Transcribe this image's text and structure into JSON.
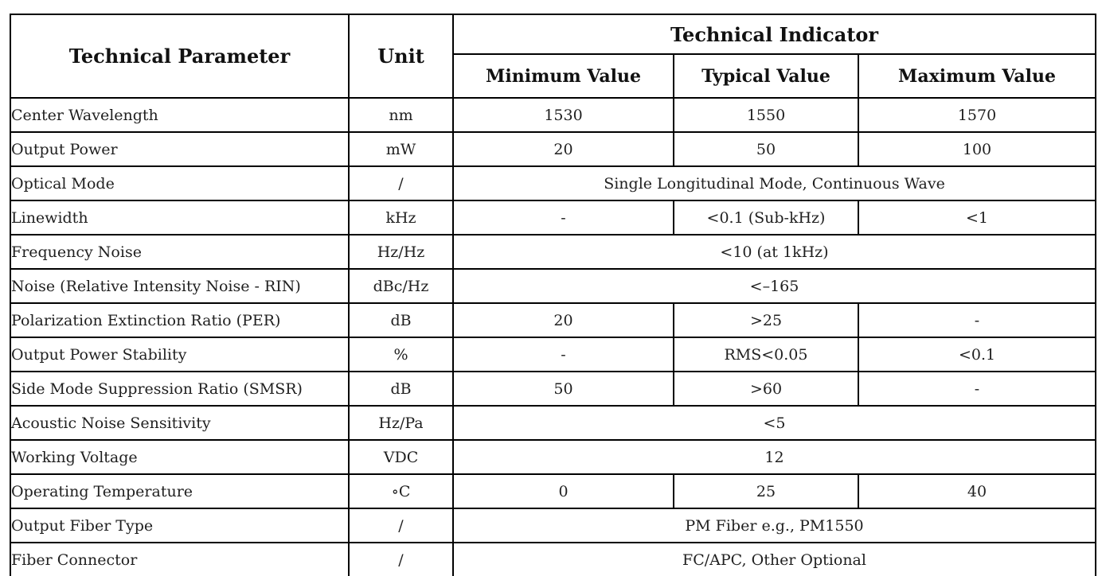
{
  "table": {
    "header": {
      "parameter": "Technical Parameter",
      "unit": "Unit",
      "indicator": "Technical Indicator",
      "minimum": "Minimum Value",
      "typical": "Typical Value",
      "maximum": "Maximum Value"
    },
    "rows": [
      {
        "parameter": "Center Wavelength",
        "unit": "nm",
        "min": "1530",
        "typical": "1550",
        "max": "1570"
      },
      {
        "parameter": "Output Power",
        "unit": "mW",
        "min": "20",
        "typical": "50",
        "max": "100"
      },
      {
        "parameter": "Optical Mode",
        "unit": "/",
        "span": "Single Longitudinal Mode, Continuous Wave"
      },
      {
        "parameter": "Linewidth",
        "unit": "kHz",
        "min": "-",
        "typical": "<0.1 (Sub-kHz)",
        "max": "<1"
      },
      {
        "parameter": "Frequency Noise",
        "unit": "Hz/Hz",
        "span": "<10 (at 1kHz)"
      },
      {
        "parameter": "Noise (Relative Intensity Noise - RIN)",
        "unit": "dBc/Hz",
        "span": "<–165"
      },
      {
        "parameter": "Polarization Extinction Ratio (PER)",
        "unit": "dB",
        "min": "20",
        "typical": ">25",
        "max": "-"
      },
      {
        "parameter": "Output Power Stability",
        "unit": "%",
        "min": "-",
        "typical": "RMS<0.05",
        "max": "<0.1"
      },
      {
        "parameter": "Side Mode Suppression Ratio (SMSR)",
        "unit": "dB",
        "min": "50",
        "typical": ">60",
        "max": "-"
      },
      {
        "parameter": "Acoustic Noise Sensitivity",
        "unit": "Hz/Pa",
        "span": "<5"
      },
      {
        "parameter": "Working Voltage",
        "unit": "VDC",
        "span": "12"
      },
      {
        "parameter": "Operating Temperature",
        "unit": "∘C",
        "min": "0",
        "typical": "25",
        "max": "40"
      },
      {
        "parameter": "Output Fiber Type",
        "unit": "/",
        "span": "PM Fiber e.g., PM1550"
      },
      {
        "parameter": "Fiber Connector",
        "unit": "/",
        "span": "FC/APC, Other Optional"
      }
    ],
    "colors": {
      "border": "#000000",
      "text": "#1f1f1f",
      "background": "#ffffff"
    }
  }
}
